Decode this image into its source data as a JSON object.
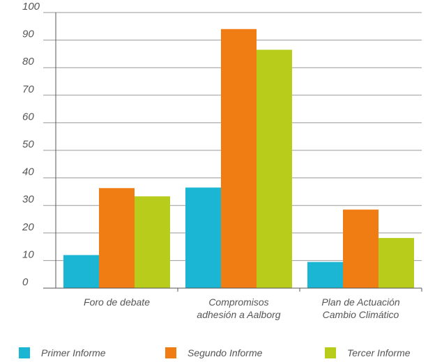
{
  "chart_data": {
    "type": "bar",
    "categories": [
      [
        "Foro de debate"
      ],
      [
        "Compromisos",
        "adhesión a Aalborg"
      ],
      [
        "Plan de Actuación",
        "Cambio Climático"
      ]
    ],
    "series": [
      {
        "name": "Primer Informe",
        "color": "#1ab6d3",
        "values": [
          12,
          36.5,
          9.5
        ]
      },
      {
        "name": "Segundo Informe",
        "color": "#f07c14",
        "values": [
          36.3,
          94,
          28.5
        ]
      },
      {
        "name": "Tercer Informe",
        "color": "#b8cc1c",
        "values": [
          33.3,
          86.5,
          18.2
        ]
      }
    ],
    "ylim": [
      0,
      100
    ],
    "yticks": [
      "0",
      "10",
      "20",
      "30",
      "40",
      "50",
      "60",
      "70",
      "80",
      "90",
      "100"
    ],
    "grid": true,
    "legend_position": "bottom"
  }
}
